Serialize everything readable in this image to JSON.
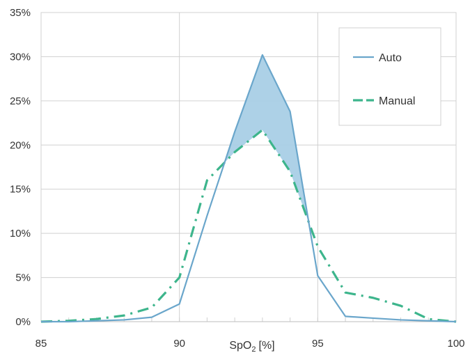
{
  "chart_data": {
    "type": "line",
    "xlabel_main": "SpO",
    "xlabel_sub": "2",
    "xlabel_unit": "[%]",
    "ylabel": "",
    "xlim": [
      85,
      100
    ],
    "ylim": [
      0,
      35
    ],
    "x_ticks": [
      85,
      90,
      95,
      100
    ],
    "x_tick_labels": [
      "85",
      "90",
      "95",
      "100"
    ],
    "y_ticks": [
      0,
      5,
      10,
      15,
      20,
      25,
      30,
      35
    ],
    "y_tick_labels": [
      "0%",
      "5%",
      "10%",
      "15%",
      "20%",
      "25%",
      "30%",
      "35%"
    ],
    "grid": true,
    "legend_position": "top-right",
    "fill_between": "area between series where Auto exceeds Manual",
    "series": [
      {
        "name": "Auto",
        "color": "#6aa6cb",
        "style": "solid",
        "x": [
          85,
          86,
          87,
          88,
          89,
          90,
          91,
          92,
          93,
          94,
          95,
          96,
          97,
          98,
          99,
          100
        ],
        "values": [
          0,
          0,
          0.1,
          0.2,
          0.5,
          2.0,
          12.0,
          21.5,
          30.2,
          23.8,
          5.2,
          0.6,
          0.4,
          0.2,
          0.1,
          0.0
        ]
      },
      {
        "name": "Manual",
        "color": "#3db58c",
        "style": "dash-dot",
        "x": [
          85,
          86,
          87,
          88,
          89,
          90,
          91,
          92,
          93,
          94,
          95,
          96,
          97,
          98,
          99,
          100
        ],
        "values": [
          0,
          0.1,
          0.3,
          0.7,
          1.6,
          5.0,
          16.0,
          19.2,
          21.7,
          17.0,
          8.5,
          3.3,
          2.7,
          1.8,
          0.3,
          0.0
        ]
      }
    ]
  }
}
